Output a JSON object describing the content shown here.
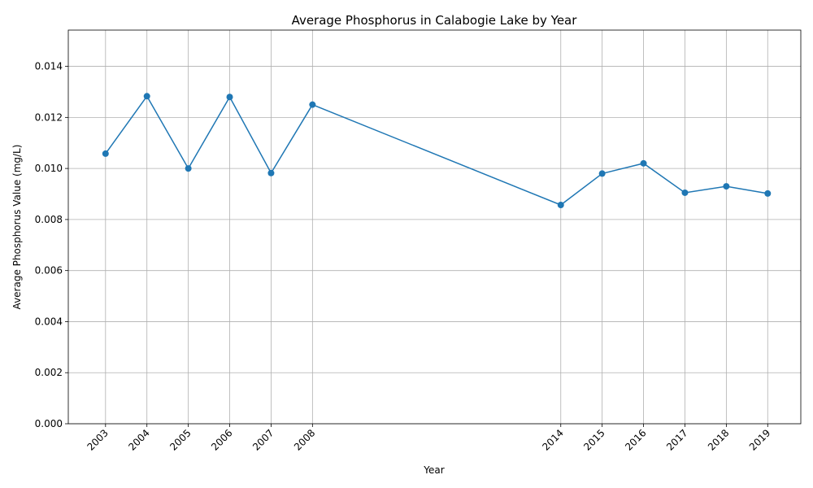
{
  "chart_data": {
    "type": "line",
    "title": "Average Phosphorus in Calabogie Lake by Year",
    "xlabel": "Year",
    "ylabel": "Average Phosphorus Value (mg/L)",
    "x": [
      2003,
      2004,
      2005,
      2006,
      2007,
      2008,
      2014,
      2015,
      2016,
      2017,
      2018,
      2019
    ],
    "x_tick_labels": [
      "2003",
      "2004",
      "2005",
      "2006",
      "2007",
      "2008",
      "2014",
      "2015",
      "2016",
      "2017",
      "2018",
      "2019"
    ],
    "series": [
      {
        "values": [
          0.01058,
          0.01283,
          0.01,
          0.0128,
          0.00982,
          0.0125,
          0.00857,
          0.0098,
          0.0102,
          0.00905,
          0.0093,
          0.00902
        ]
      }
    ],
    "y_ticks": [
      0.0,
      0.002,
      0.004,
      0.006,
      0.008,
      0.01,
      0.012,
      0.014
    ],
    "y_tick_labels": [
      "0.000",
      "0.002",
      "0.004",
      "0.006",
      "0.008",
      "0.010",
      "0.012",
      "0.014"
    ],
    "xlim": [
      2002.1,
      2019.8
    ],
    "ylim": [
      0,
      0.01542
    ],
    "grid": true,
    "legend": "none",
    "colors": {
      "line": "#1f77b4",
      "marker": "#1f77b4",
      "grid": "#b0b0b0"
    }
  }
}
